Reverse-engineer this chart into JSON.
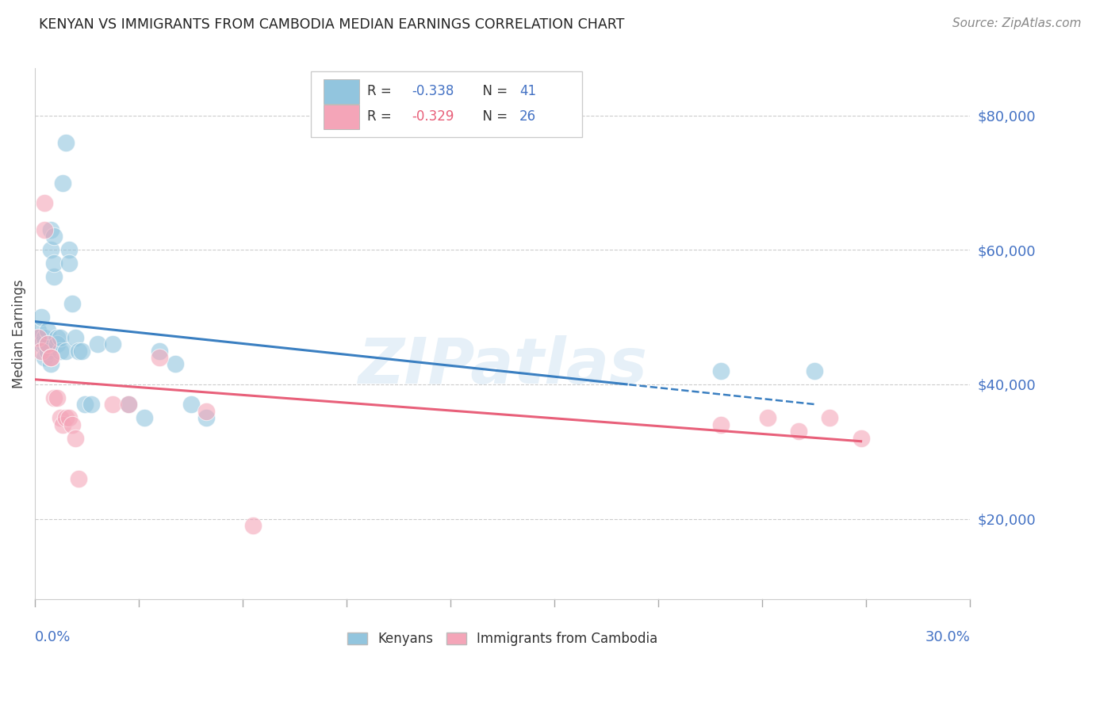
{
  "title": "KENYAN VS IMMIGRANTS FROM CAMBODIA MEDIAN EARNINGS CORRELATION CHART",
  "source": "Source: ZipAtlas.com",
  "ylabel": "Median Earnings",
  "ylabel_right_values": [
    20000,
    40000,
    60000,
    80000
  ],
  "xmin": 0.0,
  "xmax": 0.3,
  "ymin": 8000,
  "ymax": 87000,
  "watermark": "ZIPatlas",
  "blue_color": "#92c5de",
  "pink_color": "#f4a5b8",
  "blue_line_color": "#3a7fc1",
  "pink_line_color": "#e8607a",
  "kenyans_x": [
    0.001,
    0.001,
    0.002,
    0.002,
    0.003,
    0.003,
    0.003,
    0.004,
    0.004,
    0.004,
    0.005,
    0.005,
    0.005,
    0.006,
    0.006,
    0.006,
    0.007,
    0.007,
    0.008,
    0.008,
    0.009,
    0.01,
    0.01,
    0.011,
    0.011,
    0.012,
    0.013,
    0.014,
    0.015,
    0.016,
    0.018,
    0.02,
    0.025,
    0.03,
    0.035,
    0.04,
    0.045,
    0.05,
    0.055,
    0.22,
    0.25
  ],
  "kenyans_y": [
    47000,
    48000,
    46000,
    50000,
    44000,
    46000,
    47000,
    45000,
    46000,
    48000,
    43000,
    60000,
    63000,
    56000,
    58000,
    62000,
    47000,
    46000,
    45000,
    47000,
    70000,
    76000,
    45000,
    60000,
    58000,
    52000,
    47000,
    45000,
    45000,
    37000,
    37000,
    46000,
    46000,
    37000,
    35000,
    45000,
    43000,
    37000,
    35000,
    42000,
    42000
  ],
  "cambodia_x": [
    0.001,
    0.002,
    0.003,
    0.003,
    0.004,
    0.005,
    0.005,
    0.006,
    0.007,
    0.008,
    0.009,
    0.01,
    0.011,
    0.012,
    0.013,
    0.014,
    0.025,
    0.03,
    0.04,
    0.055,
    0.07,
    0.22,
    0.235,
    0.245,
    0.255,
    0.265
  ],
  "cambodia_y": [
    47000,
    45000,
    67000,
    63000,
    46000,
    44000,
    44000,
    38000,
    38000,
    35000,
    34000,
    35000,
    35000,
    34000,
    32000,
    26000,
    37000,
    37000,
    44000,
    36000,
    19000,
    34000,
    35000,
    33000,
    35000,
    32000
  ]
}
